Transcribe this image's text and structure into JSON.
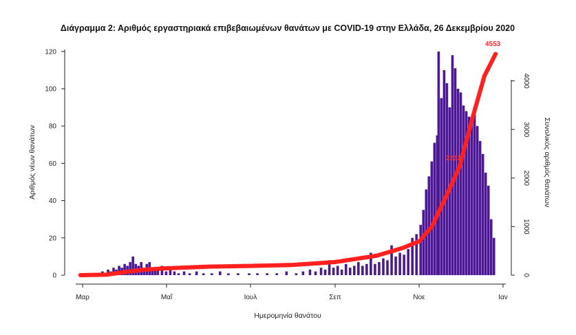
{
  "chart_data": {
    "type": "bar+line",
    "title": "Διάγραμμα 2: Αριθμός εργαστηριακά επιβεβαιωμένων θανάτων με COVID-19 στην Ελλάδα, 26 Δεκεμβρίου 2020",
    "xlabel": "Ημερομηνία θανάτου",
    "ylabel_left": "Αριθμός νέων θανάτων",
    "ylabel_right": "Συνολικός αριθμός θανάτων",
    "x_ticks": [
      "Μαρ",
      "Μαΐ",
      "Ιουλ",
      "Σεπ",
      "Νοε",
      "Ιαν"
    ],
    "y_left_ticks": [
      "0",
      "20",
      "40",
      "60",
      "80",
      "100",
      "120"
    ],
    "y_left_lim": [
      0,
      125
    ],
    "y_right_ticks": [
      "0",
      "1000",
      "2000",
      "3000",
      "4000"
    ],
    "y_right_lim": [
      0,
      4500
    ],
    "x_start": "2020-03-01",
    "daily_bar_color": "#4b1a8c",
    "cumulative_color": "#ff2020",
    "cumulative_label": "4553",
    "mid_label": "2232",
    "daily_deaths": [
      {
        "date": "2020-03-12",
        "value": 1
      },
      {
        "date": "2020-03-14",
        "value": 1
      },
      {
        "date": "2020-03-16",
        "value": 2
      },
      {
        "date": "2020-03-18",
        "value": 1
      },
      {
        "date": "2020-03-20",
        "value": 3
      },
      {
        "date": "2020-03-22",
        "value": 2
      },
      {
        "date": "2020-03-24",
        "value": 4
      },
      {
        "date": "2020-03-26",
        "value": 3
      },
      {
        "date": "2020-03-28",
        "value": 5
      },
      {
        "date": "2020-03-30",
        "value": 4
      },
      {
        "date": "2020-04-01",
        "value": 6
      },
      {
        "date": "2020-04-03",
        "value": 5
      },
      {
        "date": "2020-04-05",
        "value": 7
      },
      {
        "date": "2020-04-07",
        "value": 10
      },
      {
        "date": "2020-04-09",
        "value": 6
      },
      {
        "date": "2020-04-11",
        "value": 5
      },
      {
        "date": "2020-04-13",
        "value": 7
      },
      {
        "date": "2020-04-15",
        "value": 4
      },
      {
        "date": "2020-04-17",
        "value": 6
      },
      {
        "date": "2020-04-19",
        "value": 7
      },
      {
        "date": "2020-04-21",
        "value": 3
      },
      {
        "date": "2020-04-23",
        "value": 4
      },
      {
        "date": "2020-04-25",
        "value": 3
      },
      {
        "date": "2020-04-28",
        "value": 5
      },
      {
        "date": "2020-05-01",
        "value": 2
      },
      {
        "date": "2020-05-04",
        "value": 3
      },
      {
        "date": "2020-05-07",
        "value": 2
      },
      {
        "date": "2020-05-10",
        "value": 1
      },
      {
        "date": "2020-05-14",
        "value": 2
      },
      {
        "date": "2020-05-18",
        "value": 1
      },
      {
        "date": "2020-05-23",
        "value": 2
      },
      {
        "date": "2020-05-28",
        "value": 1
      },
      {
        "date": "2020-06-03",
        "value": 1
      },
      {
        "date": "2020-06-09",
        "value": 2
      },
      {
        "date": "2020-06-15",
        "value": 1
      },
      {
        "date": "2020-06-22",
        "value": 1
      },
      {
        "date": "2020-06-30",
        "value": 1
      },
      {
        "date": "2020-07-06",
        "value": 1
      },
      {
        "date": "2020-07-13",
        "value": 1
      },
      {
        "date": "2020-07-20",
        "value": 1
      },
      {
        "date": "2020-07-27",
        "value": 2
      },
      {
        "date": "2020-08-03",
        "value": 1
      },
      {
        "date": "2020-08-08",
        "value": 2
      },
      {
        "date": "2020-08-13",
        "value": 3
      },
      {
        "date": "2020-08-17",
        "value": 2
      },
      {
        "date": "2020-08-21",
        "value": 4
      },
      {
        "date": "2020-08-24",
        "value": 3
      },
      {
        "date": "2020-08-27",
        "value": 8
      },
      {
        "date": "2020-08-30",
        "value": 4
      },
      {
        "date": "2020-09-02",
        "value": 5
      },
      {
        "date": "2020-09-05",
        "value": 3
      },
      {
        "date": "2020-09-08",
        "value": 6
      },
      {
        "date": "2020-09-11",
        "value": 4
      },
      {
        "date": "2020-09-14",
        "value": 5
      },
      {
        "date": "2020-09-17",
        "value": 7
      },
      {
        "date": "2020-09-20",
        "value": 5
      },
      {
        "date": "2020-09-23",
        "value": 6
      },
      {
        "date": "2020-09-26",
        "value": 12
      },
      {
        "date": "2020-09-29",
        "value": 6
      },
      {
        "date": "2020-10-02",
        "value": 7
      },
      {
        "date": "2020-10-05",
        "value": 9
      },
      {
        "date": "2020-10-08",
        "value": 8
      },
      {
        "date": "2020-10-11",
        "value": 16
      },
      {
        "date": "2020-10-14",
        "value": 10
      },
      {
        "date": "2020-10-17",
        "value": 12
      },
      {
        "date": "2020-10-20",
        "value": 11
      },
      {
        "date": "2020-10-23",
        "value": 14
      },
      {
        "date": "2020-10-26",
        "value": 20
      },
      {
        "date": "2020-10-29",
        "value": 22
      },
      {
        "date": "2020-11-01",
        "value": 27
      },
      {
        "date": "2020-11-03",
        "value": 35
      },
      {
        "date": "2020-11-05",
        "value": 46
      },
      {
        "date": "2020-11-07",
        "value": 53
      },
      {
        "date": "2020-11-09",
        "value": 61
      },
      {
        "date": "2020-11-11",
        "value": 71
      },
      {
        "date": "2020-11-13",
        "value": 75
      },
      {
        "date": "2020-11-14",
        "value": 120
      },
      {
        "date": "2020-11-16",
        "value": 95
      },
      {
        "date": "2020-11-18",
        "value": 110
      },
      {
        "date": "2020-11-20",
        "value": 103
      },
      {
        "date": "2020-11-22",
        "value": 90
      },
      {
        "date": "2020-11-24",
        "value": 118
      },
      {
        "date": "2020-11-26",
        "value": 111
      },
      {
        "date": "2020-11-28",
        "value": 100
      },
      {
        "date": "2020-11-30",
        "value": 98
      },
      {
        "date": "2020-12-02",
        "value": 91
      },
      {
        "date": "2020-12-04",
        "value": 88
      },
      {
        "date": "2020-12-06",
        "value": 85
      },
      {
        "date": "2020-12-08",
        "value": 82
      },
      {
        "date": "2020-12-10",
        "value": 86
      },
      {
        "date": "2020-12-12",
        "value": 80
      },
      {
        "date": "2020-12-14",
        "value": 72
      },
      {
        "date": "2020-12-16",
        "value": 65
      },
      {
        "date": "2020-12-18",
        "value": 55
      },
      {
        "date": "2020-12-20",
        "value": 48
      },
      {
        "date": "2020-12-22",
        "value": 30
      },
      {
        "date": "2020-12-24",
        "value": 20
      }
    ],
    "cumulative": [
      {
        "date": "2020-03-01",
        "value": 0
      },
      {
        "date": "2020-03-20",
        "value": 10
      },
      {
        "date": "2020-04-01",
        "value": 60
      },
      {
        "date": "2020-04-15",
        "value": 110
      },
      {
        "date": "2020-05-01",
        "value": 140
      },
      {
        "date": "2020-06-01",
        "value": 175
      },
      {
        "date": "2020-07-01",
        "value": 190
      },
      {
        "date": "2020-08-01",
        "value": 210
      },
      {
        "date": "2020-09-01",
        "value": 270
      },
      {
        "date": "2020-10-01",
        "value": 400
      },
      {
        "date": "2020-10-20",
        "value": 560
      },
      {
        "date": "2020-11-01",
        "value": 700
      },
      {
        "date": "2020-11-10",
        "value": 1000
      },
      {
        "date": "2020-11-20",
        "value": 1600
      },
      {
        "date": "2020-11-30",
        "value": 2232
      },
      {
        "date": "2020-12-10",
        "value": 3300
      },
      {
        "date": "2020-12-18",
        "value": 4100
      },
      {
        "date": "2020-12-26",
        "value": 4553
      }
    ]
  }
}
